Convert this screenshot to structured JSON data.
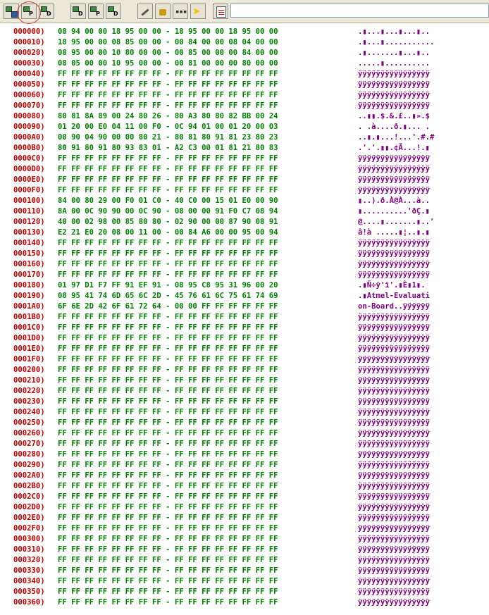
{
  "toolbar": {
    "buttons": [
      {
        "name": "read-flash-button",
        "letter": ""
      },
      {
        "name": "read-program-button",
        "letter": "P"
      },
      {
        "name": "read-data-button",
        "letter": "D"
      },
      {
        "name": "read-button-2",
        "letter": "D"
      },
      {
        "name": "program-button",
        "letter": "P"
      },
      {
        "name": "data-button",
        "letter": "D"
      },
      {
        "name": "erase-button",
        "letter": ""
      },
      {
        "name": "lock-button",
        "letter": ""
      },
      {
        "name": "fuse-button",
        "letter": ""
      },
      {
        "name": "run-button",
        "letter": ""
      },
      {
        "name": "edit-button",
        "letter": ""
      }
    ],
    "address_value": ""
  },
  "rows": [
    {
      "addr": "000000)",
      "hex": "08 94 00 00 18 95 00 00 - 18 95 00 00 18 95 00 00",
      "ascii": ".▮...▮...▮...▮.."
    },
    {
      "addr": "000010)",
      "hex": "18 95 00 00 08 85 00 00 - 00 84 00 00 08 04 00 00",
      "ascii": ".▮...▮..........."
    },
    {
      "addr": "000020)",
      "hex": "08 95 00 00 10 80 00 00 - 00 85 00 00 00 84 00 00",
      "ascii": ".▮.......▮...▮.."
    },
    {
      "addr": "000030)",
      "hex": "08 05 00 00 10 95 00 00 - 00 81 00 00 00 80 00 00",
      "ascii": ".....▮.........."
    },
    {
      "addr": "000040)",
      "hex": "FF FF FF FF FF FF FF FF - FF FF FF FF FF FF FF FF",
      "ascii": "ÿÿÿÿÿÿÿÿÿÿÿÿÿÿÿÿ"
    },
    {
      "addr": "000050)",
      "hex": "FF FF FF FF FF FF FF FF - FF FF FF FF FF FF FF FF",
      "ascii": "ÿÿÿÿÿÿÿÿÿÿÿÿÿÿÿÿ"
    },
    {
      "addr": "000060)",
      "hex": "FF FF FF FF FF FF FF FF - FF FF FF FF FF FF FF FF",
      "ascii": "ÿÿÿÿÿÿÿÿÿÿÿÿÿÿÿÿ"
    },
    {
      "addr": "000070)",
      "hex": "FF FF FF FF FF FF FF FF - FF FF FF FF FF FF FF FF",
      "ascii": "ÿÿÿÿÿÿÿÿÿÿÿÿÿÿÿÿ"
    },
    {
      "addr": "000080)",
      "hex": "80 81 8A 89 00 24 80 26 - 80 A3 80 80 82 BB 00 24",
      "ascii": "..▮▮.$.&.£..▮».$"
    },
    {
      "addr": "000090)",
      "hex": "01 20 00 E0 04 11 00 F0 - 0C 94 01 00 01 20 00 03",
      "ascii": ". .à....ð.▮... ."
    },
    {
      "addr": "0000A0)",
      "hex": "00 90 04 90 00 00 80 21 - 80 81 80 91 81 23 80 23",
      "ascii": "..▮.▮...!...'.#.#"
    },
    {
      "addr": "0000B0)",
      "hex": "80 91 80 91 80 93 83 01 - A2 C3 00 01 81 21 80 83",
      "ascii": ".'.'.▮▮.¢Ã...!.▮"
    },
    {
      "addr": "0000C0)",
      "hex": "FF FF FF FF FF FF FF FF - FF FF FF FF FF FF FF FF",
      "ascii": "ÿÿÿÿÿÿÿÿÿÿÿÿÿÿÿÿ"
    },
    {
      "addr": "0000D0)",
      "hex": "FF FF FF FF FF FF FF FF - FF FF FF FF FF FF FF FF",
      "ascii": "ÿÿÿÿÿÿÿÿÿÿÿÿÿÿÿÿ"
    },
    {
      "addr": "0000E0)",
      "hex": "FF FF FF FF FF FF FF FF - FF FF FF FF FF FF FF FF",
      "ascii": "ÿÿÿÿÿÿÿÿÿÿÿÿÿÿÿÿ"
    },
    {
      "addr": "0000F0)",
      "hex": "FF FF FF FF FF FF FF FF - FF FF FF FF FF FF FF FF",
      "ascii": "ÿÿÿÿÿÿÿÿÿÿÿÿÿÿÿÿ"
    },
    {
      "addr": "000100)",
      "hex": "84 00 80 29 00 F0 01 C0 - 40 C0 00 15 01 E0 00 90",
      "ascii": "▮..).ð.À@À...à.."
    },
    {
      "addr": "000110)",
      "hex": "8A 00 0C 90 90 00 0C 90 - 08 00 00 91 F0 C7 08 94",
      "ascii": "▮..........'ðÇ.▮"
    },
    {
      "addr": "000120)",
      "hex": "40 00 02 98 00 85 80 80 - 02 90 00 00 87 90 08 91",
      "ascii": "@....▮.......▮..'"
    },
    {
      "addr": "000130)",
      "hex": "E2 21 E0 20 08 00 11 00 - 00 84 A6 00 00 95 00 94",
      "ascii": "â!à .....▮¦..▮.▮"
    },
    {
      "addr": "000140)",
      "hex": "FF FF FF FF FF FF FF FF - FF FF FF FF FF FF FF FF",
      "ascii": "ÿÿÿÿÿÿÿÿÿÿÿÿÿÿÿÿ"
    },
    {
      "addr": "000150)",
      "hex": "FF FF FF FF FF FF FF FF - FF FF FF FF FF FF FF FF",
      "ascii": "ÿÿÿÿÿÿÿÿÿÿÿÿÿÿÿÿ"
    },
    {
      "addr": "000160)",
      "hex": "FF FF FF FF FF FF FF FF - FF FF FF FF FF FF FF FF",
      "ascii": "ÿÿÿÿÿÿÿÿÿÿÿÿÿÿÿÿ"
    },
    {
      "addr": "000170)",
      "hex": "FF FF FF FF FF FF FF FF - FF FF FF FF FF FF FF FF",
      "ascii": "ÿÿÿÿÿÿÿÿÿÿÿÿÿÿÿÿ"
    },
    {
      "addr": "000180)",
      "hex": "01 97 D1 F7 FF 91 EF 91 - 08 95 C8 95 31 96 00 20",
      "ascii": ".▮Ñ÷ÿ'ï'.▮È▮1▮. "
    },
    {
      "addr": "000190)",
      "hex": "08 95 41 74 6D 65 6C 2D - 45 76 61 6C 75 61 74 69",
      "ascii": ".▮Atmel-Evaluati"
    },
    {
      "addr": "0001A0)",
      "hex": "6F 6E 2D 42 6F 61 72 64 - 00 00 FF FF FF FF FF FF",
      "ascii": "on-Board..ÿÿÿÿÿÿ"
    },
    {
      "addr": "0001B0)",
      "hex": "FF FF FF FF FF FF FF FF - FF FF FF FF FF FF FF FF",
      "ascii": "ÿÿÿÿÿÿÿÿÿÿÿÿÿÿÿÿ"
    },
    {
      "addr": "0001C0)",
      "hex": "FF FF FF FF FF FF FF FF - FF FF FF FF FF FF FF FF",
      "ascii": "ÿÿÿÿÿÿÿÿÿÿÿÿÿÿÿÿ"
    },
    {
      "addr": "0001D0)",
      "hex": "FF FF FF FF FF FF FF FF - FF FF FF FF FF FF FF FF",
      "ascii": "ÿÿÿÿÿÿÿÿÿÿÿÿÿÿÿÿ"
    },
    {
      "addr": "0001E0)",
      "hex": "FF FF FF FF FF FF FF FF - FF FF FF FF FF FF FF FF",
      "ascii": "ÿÿÿÿÿÿÿÿÿÿÿÿÿÿÿÿ"
    },
    {
      "addr": "0001F0)",
      "hex": "FF FF FF FF FF FF FF FF - FF FF FF FF FF FF FF FF",
      "ascii": "ÿÿÿÿÿÿÿÿÿÿÿÿÿÿÿÿ"
    },
    {
      "addr": "000200)",
      "hex": "FF FF FF FF FF FF FF FF - FF FF FF FF FF FF FF FF",
      "ascii": "ÿÿÿÿÿÿÿÿÿÿÿÿÿÿÿÿ"
    },
    {
      "addr": "000210)",
      "hex": "FF FF FF FF FF FF FF FF - FF FF FF FF FF FF FF FF",
      "ascii": "ÿÿÿÿÿÿÿÿÿÿÿÿÿÿÿÿ"
    },
    {
      "addr": "000220)",
      "hex": "FF FF FF FF FF FF FF FF - FF FF FF FF FF FF FF FF",
      "ascii": "ÿÿÿÿÿÿÿÿÿÿÿÿÿÿÿÿ"
    },
    {
      "addr": "000230)",
      "hex": "FF FF FF FF FF FF FF FF - FF FF FF FF FF FF FF FF",
      "ascii": "ÿÿÿÿÿÿÿÿÿÿÿÿÿÿÿÿ"
    },
    {
      "addr": "000240)",
      "hex": "FF FF FF FF FF FF FF FF - FF FF FF FF FF FF FF FF",
      "ascii": "ÿÿÿÿÿÿÿÿÿÿÿÿÿÿÿÿ"
    },
    {
      "addr": "000250)",
      "hex": "FF FF FF FF FF FF FF FF - FF FF FF FF FF FF FF FF",
      "ascii": "ÿÿÿÿÿÿÿÿÿÿÿÿÿÿÿÿ"
    },
    {
      "addr": "000260)",
      "hex": "FF FF FF FF FF FF FF FF - FF FF FF FF FF FF FF FF",
      "ascii": "ÿÿÿÿÿÿÿÿÿÿÿÿÿÿÿÿ"
    },
    {
      "addr": "000270)",
      "hex": "FF FF FF FF FF FF FF FF - FF FF FF FF FF FF FF FF",
      "ascii": "ÿÿÿÿÿÿÿÿÿÿÿÿÿÿÿÿ"
    },
    {
      "addr": "000280)",
      "hex": "FF FF FF FF FF FF FF FF - FF FF FF FF FF FF FF FF",
      "ascii": "ÿÿÿÿÿÿÿÿÿÿÿÿÿÿÿÿ"
    },
    {
      "addr": "000290)",
      "hex": "FF FF FF FF FF FF FF FF - FF FF FF FF FF FF FF FF",
      "ascii": "ÿÿÿÿÿÿÿÿÿÿÿÿÿÿÿÿ"
    },
    {
      "addr": "0002A0)",
      "hex": "FF FF FF FF FF FF FF FF - FF FF FF FF FF FF FF FF",
      "ascii": "ÿÿÿÿÿÿÿÿÿÿÿÿÿÿÿÿ"
    },
    {
      "addr": "0002B0)",
      "hex": "FF FF FF FF FF FF FF FF - FF FF FF FF FF FF FF FF",
      "ascii": "ÿÿÿÿÿÿÿÿÿÿÿÿÿÿÿÿ"
    },
    {
      "addr": "0002C0)",
      "hex": "FF FF FF FF FF FF FF FF - FF FF FF FF FF FF FF FF",
      "ascii": "ÿÿÿÿÿÿÿÿÿÿÿÿÿÿÿÿ"
    },
    {
      "addr": "0002D0)",
      "hex": "FF FF FF FF FF FF FF FF - FF FF FF FF FF FF FF FF",
      "ascii": "ÿÿÿÿÿÿÿÿÿÿÿÿÿÿÿÿ"
    },
    {
      "addr": "0002E0)",
      "hex": "FF FF FF FF FF FF FF FF - FF FF FF FF FF FF FF FF",
      "ascii": "ÿÿÿÿÿÿÿÿÿÿÿÿÿÿÿÿ"
    },
    {
      "addr": "0002F0)",
      "hex": "FF FF FF FF FF FF FF FF - FF FF FF FF FF FF FF FF",
      "ascii": "ÿÿÿÿÿÿÿÿÿÿÿÿÿÿÿÿ"
    },
    {
      "addr": "000300)",
      "hex": "FF FF FF FF FF FF FF FF - FF FF FF FF FF FF FF FF",
      "ascii": "ÿÿÿÿÿÿÿÿÿÿÿÿÿÿÿÿ"
    },
    {
      "addr": "000310)",
      "hex": "FF FF FF FF FF FF FF FF - FF FF FF FF FF FF FF FF",
      "ascii": "ÿÿÿÿÿÿÿÿÿÿÿÿÿÿÿÿ"
    },
    {
      "addr": "000320)",
      "hex": "FF FF FF FF FF FF FF FF - FF FF FF FF FF FF FF FF",
      "ascii": "ÿÿÿÿÿÿÿÿÿÿÿÿÿÿÿÿ"
    },
    {
      "addr": "000330)",
      "hex": "FF FF FF FF FF FF FF FF - FF FF FF FF FF FF FF FF",
      "ascii": "ÿÿÿÿÿÿÿÿÿÿÿÿÿÿÿÿ"
    },
    {
      "addr": "000340)",
      "hex": "FF FF FF FF FF FF FF FF - FF FF FF FF FF FF FF FF",
      "ascii": "ÿÿÿÿÿÿÿÿÿÿÿÿÿÿÿÿ"
    },
    {
      "addr": "000350)",
      "hex": "FF FF FF FF FF FF FF FF - FF FF FF FF FF FF FF FF",
      "ascii": "ÿÿÿÿÿÿÿÿÿÿÿÿÿÿÿÿ"
    },
    {
      "addr": "000360)",
      "hex": "FF FF FF FF FF FF FF FF - FF FF FF FF FF FF FF FF",
      "ascii": "ÿÿÿÿÿÿÿÿÿÿÿÿÿÿÿÿ"
    }
  ],
  "colors": {
    "address": "#c00000",
    "hex": "#008000",
    "ascii": "#800080"
  }
}
